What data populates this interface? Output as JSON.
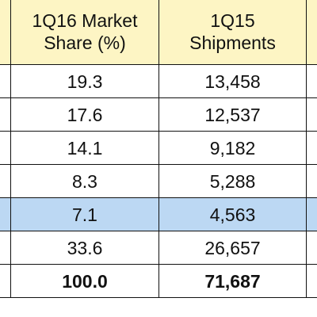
{
  "table": {
    "headers": [
      [
        "1Q16 Market",
        "Share (%)"
      ],
      [
        "1Q15",
        "Shipments"
      ]
    ],
    "rows": [
      [
        "19.3",
        "13,458"
      ],
      [
        "17.6",
        "12,537"
      ],
      [
        "14.1",
        "9,182"
      ],
      [
        "8.3",
        "5,288"
      ],
      [
        "7.1",
        "4,563"
      ],
      [
        "33.6",
        "26,657"
      ],
      [
        "100.0",
        "71,687"
      ]
    ],
    "highlighted_row": 4,
    "bold_row": 6
  }
}
